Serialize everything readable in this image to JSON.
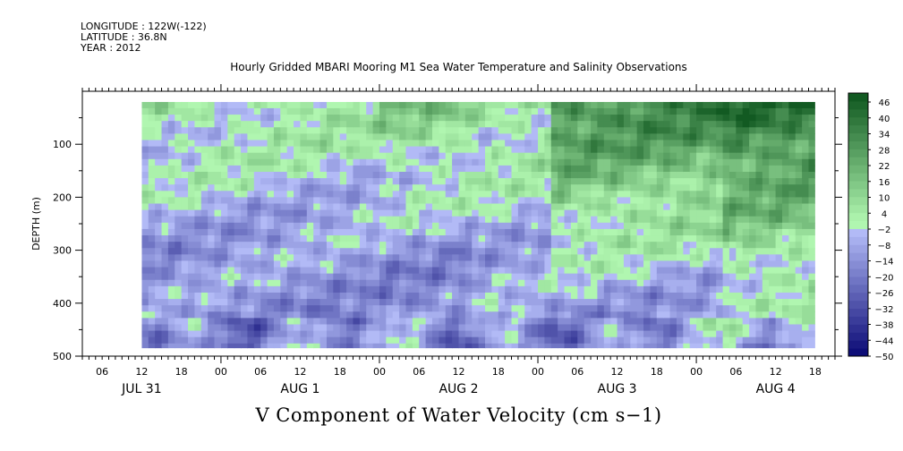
{
  "header": {
    "longitude": "LONGITUDE : 122W(-122)",
    "latitude": "LATITUDE : 36.8N",
    "year": "YEAR : 2012"
  },
  "chart_data": {
    "type": "heatmap",
    "title": "Hourly Gridded MBARI Mooring M1 Sea Water Temperature and Salinity Observations",
    "xlabel": "V Component of Water Velocity (cm s−1)",
    "ylabel": "DEPTH (m)",
    "ylim": [
      500,
      0
    ],
    "yticks": [
      {
        "value": 100,
        "label": "100"
      },
      {
        "value": 200,
        "label": "200"
      },
      {
        "value": 300,
        "label": "300"
      },
      {
        "value": 400,
        "label": "400"
      },
      {
        "value": 500,
        "label": "500"
      }
    ],
    "x_hour_start": 3,
    "x_hour_end": 117,
    "x_data_start_hour": 12,
    "x_data_end_hour": 114,
    "depth_data_top": 20,
    "depth_data_bottom": 485,
    "x_hour_ticks": [
      "06",
      "12",
      "18",
      "00",
      "06",
      "12",
      "18",
      "00",
      "06",
      "12",
      "18",
      "00",
      "06",
      "12",
      "18",
      "00",
      "06",
      "12",
      "18"
    ],
    "x_day_labels": [
      {
        "label": "JUL 31",
        "hour": 12
      },
      {
        "label": "AUG  1",
        "hour": 36
      },
      {
        "label": "AUG  2",
        "hour": 60
      },
      {
        "label": "AUG  3",
        "hour": 84
      },
      {
        "label": "AUG  4",
        "hour": 108
      }
    ],
    "colorbar": {
      "min": -50,
      "max": 50,
      "step": 3,
      "labels": [
        "46",
        "40",
        "34",
        "28",
        "22",
        "16",
        "10",
        "4",
        "−2",
        "−8",
        "−14",
        "−20",
        "−26",
        "−32",
        "−38",
        "−44",
        "−50"
      ]
    },
    "field_summary": {
      "day_bands": [
        {
          "start_hour": 12,
          "end_hour": 48,
          "upper_value": 4,
          "lower_value": -14
        },
        {
          "start_hour": 48,
          "end_hour": 62,
          "upper_value": 10,
          "lower_value": -18
        },
        {
          "start_hour": 62,
          "end_hour": 74,
          "upper_value": 6,
          "lower_value": -12
        },
        {
          "start_hour": 74,
          "end_hour": 100,
          "upper_value": 28,
          "lower_value": -16
        },
        {
          "start_hour": 100,
          "end_hour": 114,
          "upper_value": 34,
          "lower_value": -10
        }
      ]
    }
  }
}
